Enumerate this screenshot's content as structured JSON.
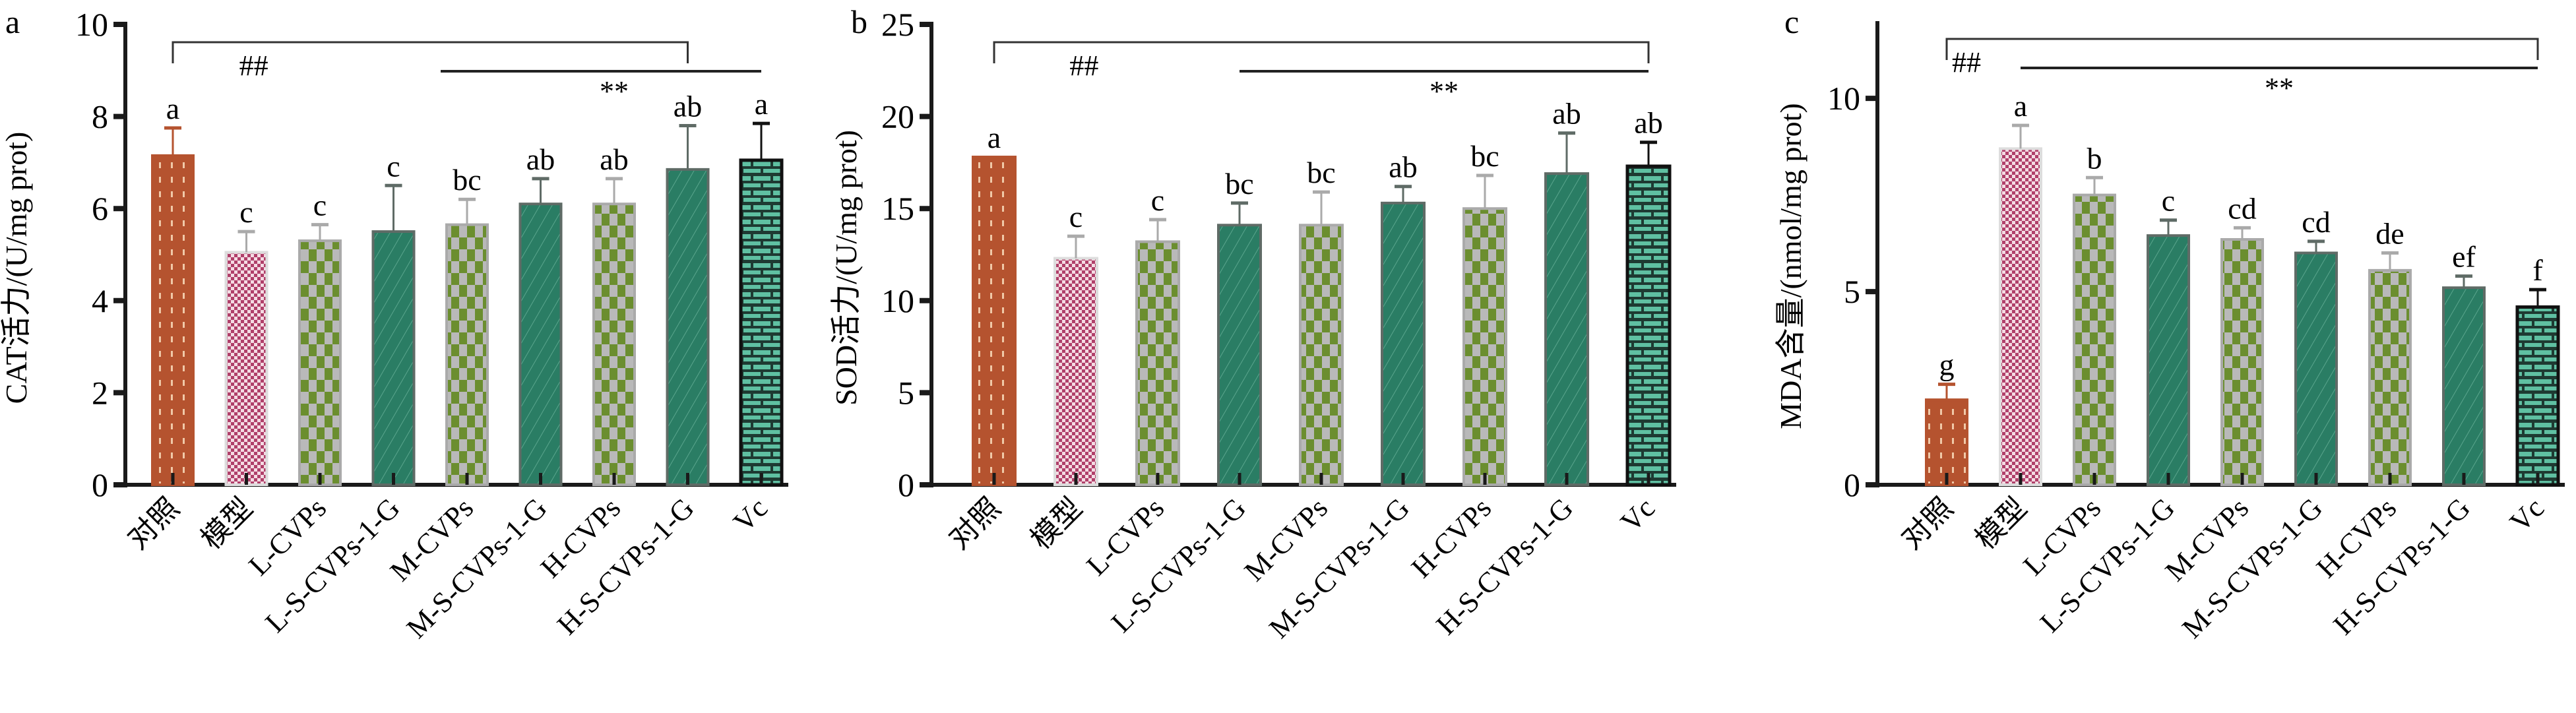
{
  "chart_data": [
    {
      "type": "bar",
      "panel_label": "a",
      "ylabel": "CAT活力/(U/mg prot)",
      "ylim": [
        0,
        10
      ],
      "yticks": [
        0,
        2,
        4,
        6,
        8,
        10
      ],
      "categories": [
        "对照",
        "模型",
        "L-CVPs",
        "L-S-CVPs-1-G",
        "M-CVPs",
        "M-S-CVPs-1-G",
        "H-CVPs",
        "H-S-CVPs-1-G",
        "Vc"
      ],
      "values": [
        7.15,
        5.05,
        5.3,
        5.5,
        5.65,
        6.1,
        6.1,
        6.85,
        7.05
      ],
      "errors": [
        0.6,
        0.45,
        0.35,
        1.0,
        0.55,
        0.55,
        0.55,
        0.95,
        0.8
      ],
      "letters": [
        "a",
        "c",
        "c",
        "c",
        "bc",
        "ab",
        "ab",
        "ab",
        "a"
      ],
      "annotations": [
        {
          "text": "##",
          "from": 0,
          "to": 7,
          "style": "bracket"
        },
        {
          "text": "**",
          "from": 4,
          "to": 8,
          "style": "line"
        }
      ]
    },
    {
      "type": "bar",
      "panel_label": "b",
      "ylabel": "SOD活力/(U/mg prot)",
      "ylim": [
        0,
        25
      ],
      "yticks": [
        0,
        5,
        10,
        15,
        20,
        25
      ],
      "categories": [
        "对照",
        "模型",
        "L-CVPs",
        "L-S-CVPs-1-G",
        "M-CVPs",
        "M-S-CVPs-1-G",
        "H-CVPs",
        "H-S-CVPs-1-G",
        "Vc"
      ],
      "values": [
        17.8,
        12.3,
        13.2,
        14.1,
        14.1,
        15.3,
        15.0,
        16.9,
        17.3
      ],
      "errors": [
        0,
        1.2,
        1.2,
        1.2,
        1.8,
        0.9,
        1.8,
        2.2,
        1.3
      ],
      "letters": [
        "a",
        "c",
        "c",
        "bc",
        "bc",
        "ab",
        "bc",
        "ab",
        "ab"
      ],
      "annotations": [
        {
          "text": "##",
          "from": 0,
          "to": 8,
          "style": "bracket"
        },
        {
          "text": "**",
          "from": 3,
          "to": 8,
          "style": "line"
        }
      ]
    },
    {
      "type": "bar",
      "panel_label": "c",
      "ylabel": "MDA含量/(nmol/mg prot)",
      "ylim": [
        0,
        12
      ],
      "yticks": [
        0,
        5,
        10
      ],
      "categories": [
        "对照",
        "模型",
        "L-CVPs",
        "L-S-CVPs-1-G",
        "M-CVPs",
        "M-S-CVPs-1-G",
        "H-CVPs",
        "H-S-CVPs-1-G",
        "Vc"
      ],
      "values": [
        2.2,
        8.7,
        7.5,
        6.45,
        6.35,
        6.0,
        5.55,
        5.1,
        4.6
      ],
      "errors": [
        0.4,
        0.6,
        0.45,
        0.4,
        0.3,
        0.3,
        0.45,
        0.3,
        0.45
      ],
      "letters": [
        "g",
        "a",
        "b",
        "c",
        "cd",
        "cd",
        "de",
        "ef",
        "f"
      ],
      "annotations": [
        {
          "text": "##",
          "from": 0,
          "to": 8,
          "style": "bracket"
        },
        {
          "text": "**",
          "from": 1,
          "to": 8,
          "style": "line"
        }
      ]
    }
  ],
  "colors": {
    "control": "#b5532f",
    "model": "#b0406a",
    "cvps_check": "#6b8e2f",
    "teal": "#2a7d64",
    "vc": "#5fc0a2",
    "border_gray": "#a8a8a8",
    "axis": "#1a1a1a"
  }
}
